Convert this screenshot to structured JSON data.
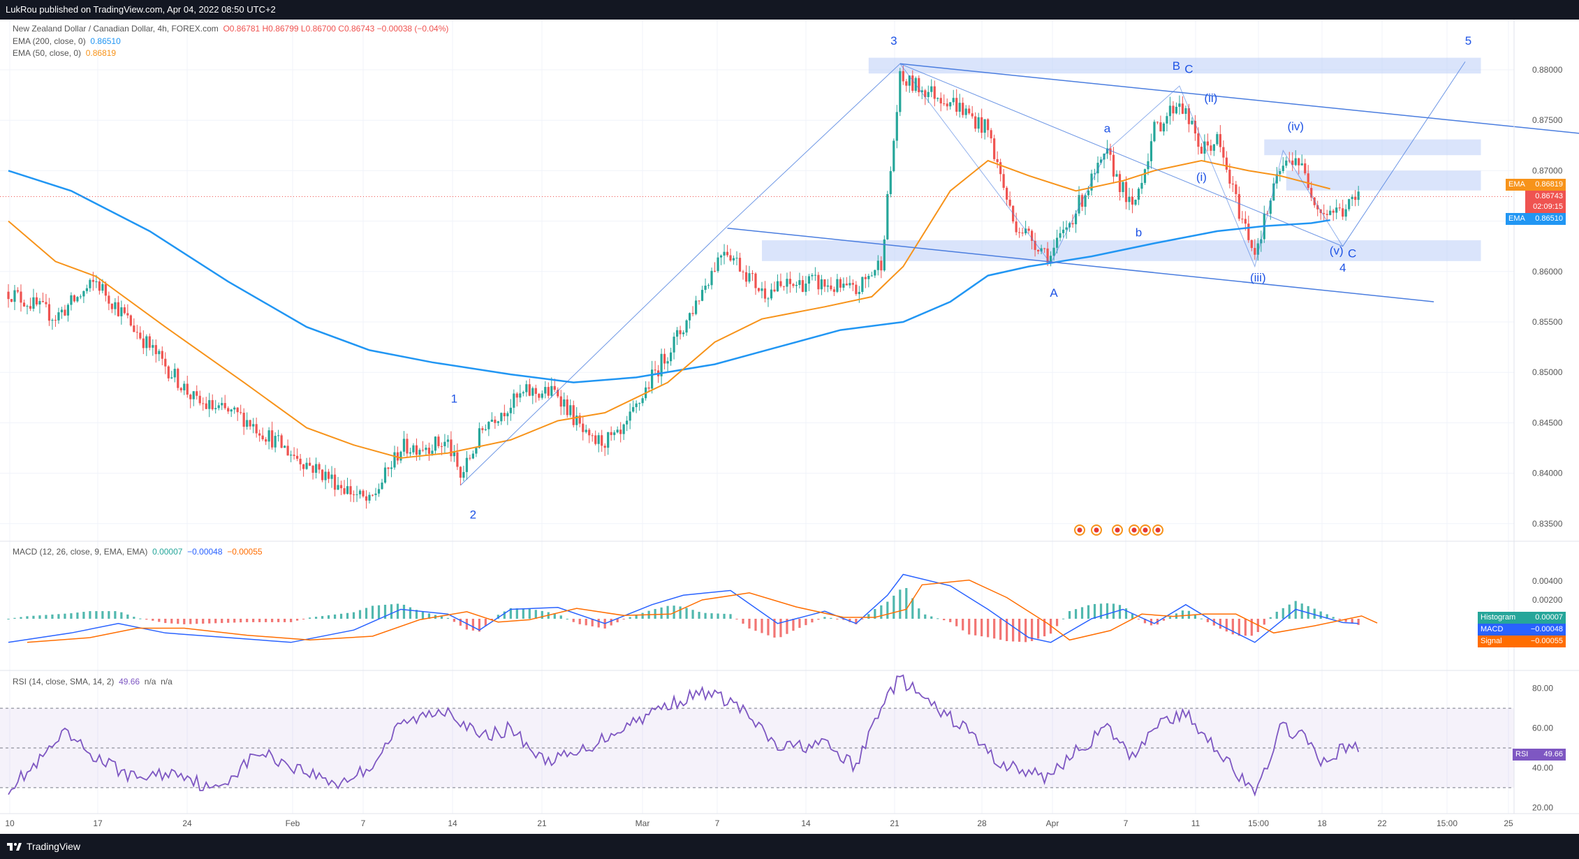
{
  "header": {
    "publisher": "LukRou published on TradingView.com, Apr 04, 2022 08:50 UTC+2"
  },
  "price_legend": {
    "title": "New Zealand Dollar / Canadian Dollar, 4h, FOREX.com",
    "ohlc": "O0.86781 H0.86799 L0.86700 C0.86743 −0.00038 (−0.04%)",
    "ema200_label": "EMA (200, close, 0)",
    "ema200_value": "0.86510",
    "ema50_label": "EMA (50, close, 0)",
    "ema50_value": "0.86819"
  },
  "macd_legend": {
    "label": "MACD (12, 26, close, 9, EMA, EMA)",
    "histogram": "0.00007",
    "macd": "−0.00048",
    "signal": "−0.00055"
  },
  "rsi_legend": {
    "label": "RSI (14, close, SMA, 14, 2)",
    "value": "49.66",
    "na1": "n/a",
    "na2": "n/a"
  },
  "badges": {
    "ema_label": "EMA",
    "ema50": "0.86819",
    "price": "0.86743",
    "countdown": "02:09:15",
    "ema200": "0.86510",
    "histogram_label": "Histogram",
    "histogram": "0.00007",
    "macd_label": "MACD",
    "macd": "−0.00048",
    "signal_label": "Signal",
    "signal": "−0.00055",
    "rsi_label": "RSI",
    "rsi": "49.66"
  },
  "colors": {
    "ema200": "#2196f3",
    "ema50": "#f7931a",
    "up": "#26a69a",
    "down": "#ef5350",
    "zone": "#bbcdf7",
    "channel": "#4a7ddf",
    "rsi": "#7e57c2",
    "background": "#ffffff"
  },
  "footer": {
    "brand": "TradingView"
  },
  "chart_data": {
    "type": "candlestick",
    "symbol": "NZDCAD",
    "timeframe": "4h",
    "currency": "CAD",
    "price_axis": {
      "ylim": [
        0.8325,
        0.887
      ],
      "ticks": [
        "0.88000",
        "0.87500",
        "0.87000",
        "0.86500",
        "0.86000",
        "0.85500",
        "0.85000",
        "0.84500",
        "0.84000",
        "0.83500"
      ]
    },
    "x_ticks": [
      "10",
      "17",
      "24",
      "Feb",
      "7",
      "14",
      "21",
      "Mar",
      "7",
      "14",
      "21",
      "28",
      "Apr",
      "7",
      "11",
      "15:00",
      "18",
      "22",
      "15:00",
      "25"
    ],
    "ema200_path": [
      [
        0,
        0.87
      ],
      [
        20,
        0.868
      ],
      [
        45,
        0.864
      ],
      [
        70,
        0.859
      ],
      [
        95,
        0.8545
      ],
      [
        115,
        0.8522
      ],
      [
        135,
        0.851
      ],
      [
        160,
        0.8498
      ],
      [
        180,
        0.849
      ],
      [
        200,
        0.8495
      ],
      [
        225,
        0.8508
      ],
      [
        245,
        0.8525
      ],
      [
        265,
        0.8542
      ],
      [
        285,
        0.855
      ],
      [
        300,
        0.857
      ],
      [
        312,
        0.8596
      ],
      [
        325,
        0.8605
      ],
      [
        345,
        0.8615
      ],
      [
        365,
        0.8628
      ],
      [
        385,
        0.864
      ],
      [
        400,
        0.8645
      ],
      [
        415,
        0.8648
      ],
      [
        421,
        0.8651
      ]
    ],
    "ema50_path": [
      [
        0,
        0.865
      ],
      [
        15,
        0.861
      ],
      [
        28,
        0.8595
      ],
      [
        50,
        0.8545
      ],
      [
        75,
        0.849
      ],
      [
        95,
        0.8445
      ],
      [
        110,
        0.8428
      ],
      [
        125,
        0.8415
      ],
      [
        140,
        0.842
      ],
      [
        160,
        0.8433
      ],
      [
        175,
        0.8452
      ],
      [
        190,
        0.846
      ],
      [
        210,
        0.849
      ],
      [
        225,
        0.853
      ],
      [
        240,
        0.8553
      ],
      [
        260,
        0.8565
      ],
      [
        275,
        0.8575
      ],
      [
        285,
        0.8605
      ],
      [
        300,
        0.868
      ],
      [
        312,
        0.871
      ],
      [
        325,
        0.8695
      ],
      [
        340,
        0.868
      ],
      [
        355,
        0.869
      ],
      [
        365,
        0.87
      ],
      [
        380,
        0.871
      ],
      [
        395,
        0.87
      ],
      [
        405,
        0.8695
      ],
      [
        421,
        0.8682
      ]
    ],
    "zones": [
      {
        "x0": 274,
        "x1": 469,
        "y0": 0.8796,
        "y1": 0.8804
      },
      {
        "x0": 400,
        "x1": 469,
        "y0": 0.8715,
        "y1": 0.8723
      },
      {
        "x0": 407,
        "x1": 469,
        "y0": 0.868,
        "y1": 0.8692
      },
      {
        "x0": 240,
        "x1": 469,
        "y0": 0.861,
        "y1": 0.8623
      }
    ],
    "channel_upper": [
      [
        284,
        0.8806
      ],
      [
        510,
        0.8734
      ]
    ],
    "channel_lower": [
      [
        229,
        0.8643
      ],
      [
        454,
        0.857
      ]
    ],
    "impulse_path": [
      [
        144,
        0.8388
      ],
      [
        228,
        0.8642
      ],
      [
        284,
        0.8806
      ],
      [
        425,
        0.8625
      ],
      [
        464,
        0.8808
      ]
    ],
    "correction_path": [
      [
        284,
        0.8806
      ],
      [
        332,
        0.8608
      ],
      [
        350,
        0.872
      ],
      [
        373,
        0.8784
      ],
      [
        397,
        0.8605
      ],
      [
        406,
        0.872
      ],
      [
        425,
        0.8625
      ]
    ],
    "wave_labels": [
      {
        "label": "1",
        "x": 142,
        "y": 0.847
      },
      {
        "label": "2",
        "x": 148,
        "y": 0.8355
      },
      {
        "label": "3",
        "x": 282,
        "y": 0.8825
      },
      {
        "label": "A",
        "x": 333,
        "y": 0.8575
      },
      {
        "label": "a",
        "x": 350,
        "y": 0.8738
      },
      {
        "label": "b",
        "x": 360,
        "y": 0.8635
      },
      {
        "label": "B",
        "x": 372,
        "y": 0.88
      },
      {
        "label": "C",
        "x": 376,
        "y": 0.8797
      },
      {
        "label": "(ii)",
        "x": 383,
        "y": 0.8768
      },
      {
        "label": "(i)",
        "x": 380,
        "y": 0.869
      },
      {
        "label": "(iii)",
        "x": 398,
        "y": 0.859
      },
      {
        "label": "(iv)",
        "x": 410,
        "y": 0.874
      },
      {
        "label": "(v)",
        "x": 423,
        "y": 0.8617
      },
      {
        "label": "C",
        "x": 428,
        "y": 0.8614
      },
      {
        "label": "4",
        "x": 425,
        "y": 0.86
      },
      {
        "label": "5",
        "x": 465,
        "y": 0.8825
      }
    ],
    "macd_axis": {
      "ticks": [
        "0.00400",
        "0.00200"
      ]
    },
    "rsi_axis": {
      "ylim": [
        18,
        88
      ],
      "bands": [
        30,
        50,
        70
      ],
      "ticks": [
        "80.00",
        "60.00",
        "40.00",
        "20.00"
      ]
    },
    "rsi_last": 49.66,
    "macd_last": {
      "histogram": 7e-05,
      "macd": -0.00048,
      "signal": -0.00055
    }
  }
}
